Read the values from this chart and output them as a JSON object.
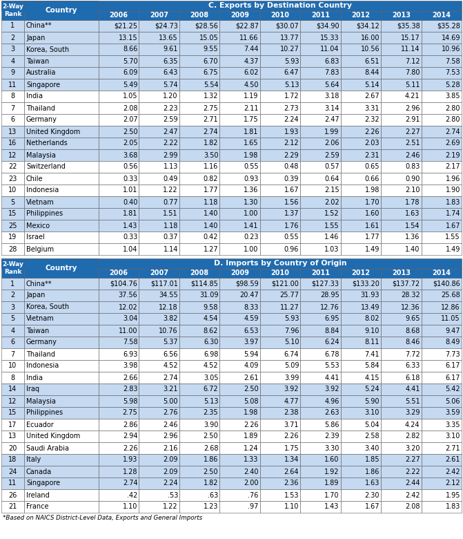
{
  "table_c_title": "C. Exports by Destination Country",
  "table_d_title": "D. Imports by Country of Origin",
  "years": [
    "2006",
    "2007",
    "2008",
    "2009",
    "2010",
    "2011",
    "2012",
    "2013",
    "2014"
  ],
  "table_c_rows": [
    [
      "1",
      "China**",
      "$21.25",
      "$24.73",
      "$28.56",
      "$22.87",
      "$30.07",
      "$34.90",
      "$34.12",
      "$35.38",
      "$35.28"
    ],
    [
      "2",
      "Japan",
      "13.15",
      "13.65",
      "15.05",
      "11.66",
      "13.77",
      "15.33",
      "16.00",
      "15.17",
      "14.69"
    ],
    [
      "3",
      "Korea, South",
      "8.66",
      "9.61",
      "9.55",
      "7.44",
      "10.27",
      "11.04",
      "10.56",
      "11.14",
      "10.96"
    ],
    [
      "4",
      "Taiwan",
      "5.70",
      "6.35",
      "6.70",
      "4.37",
      "5.93",
      "6.83",
      "6.51",
      "7.12",
      "7.58"
    ],
    [
      "9",
      "Australia",
      "6.09",
      "6.43",
      "6.75",
      "6.02",
      "6.47",
      "7.83",
      "8.44",
      "7.80",
      "7.53"
    ],
    [
      "11",
      "Singapore",
      "5.49",
      "5.74",
      "5.54",
      "4.50",
      "5.13",
      "5.64",
      "5.14",
      "5.11",
      "5.28"
    ],
    [
      "8",
      "India",
      "1.05",
      "1.20",
      "1.32",
      "1.19",
      "1.72",
      "3.18",
      "2.67",
      "4.21",
      "3.85"
    ],
    [
      "7",
      "Thailand",
      "2.08",
      "2.23",
      "2.75",
      "2.11",
      "2.73",
      "3.14",
      "3.31",
      "2.96",
      "2.80"
    ],
    [
      "6",
      "Germany",
      "2.07",
      "2.59",
      "2.71",
      "1.75",
      "2.24",
      "2.47",
      "2.32",
      "2.91",
      "2.80"
    ],
    [
      "13",
      "United Kingdom",
      "2.50",
      "2.47",
      "2.74",
      "1.81",
      "1.93",
      "1.99",
      "2.26",
      "2.27",
      "2.74"
    ],
    [
      "16",
      "Netherlands",
      "2.05",
      "2.22",
      "1.82",
      "1.65",
      "2.12",
      "2.06",
      "2.03",
      "2.51",
      "2.69"
    ],
    [
      "12",
      "Malaysia",
      "3.68",
      "2.99",
      "3.50",
      "1.98",
      "2.29",
      "2.59",
      "2.31",
      "2.46",
      "2.19"
    ],
    [
      "22",
      "Switzerland",
      "0.56",
      "1.13",
      "1.16",
      "0.55",
      "0.48",
      "0.57",
      "0.65",
      "0.83",
      "2.17"
    ],
    [
      "23",
      "Chile",
      "0.33",
      "0.49",
      "0.82",
      "0.93",
      "0.39",
      "0.64",
      "0.66",
      "0.90",
      "1.96"
    ],
    [
      "10",
      "Indonesia",
      "1.01",
      "1.22",
      "1.77",
      "1.36",
      "1.67",
      "2.15",
      "1.98",
      "2.10",
      "1.90"
    ],
    [
      "5",
      "Vietnam",
      "0.40",
      "0.77",
      "1.18",
      "1.30",
      "1.56",
      "2.02",
      "1.70",
      "1.78",
      "1.83"
    ],
    [
      "15",
      "Philippines",
      "1.81",
      "1.51",
      "1.40",
      "1.00",
      "1.37",
      "1.52",
      "1.60",
      "1.63",
      "1.74"
    ],
    [
      "25",
      "Mexico",
      "1.43",
      "1.18",
      "1.40",
      "1.41",
      "1.76",
      "1.55",
      "1.61",
      "1.54",
      "1.67"
    ],
    [
      "19",
      "Israel",
      "0.33",
      "0.37",
      "0.42",
      "0.23",
      "0.55",
      "1.46",
      "1.77",
      "1.36",
      "1.55"
    ],
    [
      "28",
      "Belgium",
      "1.04",
      "1.14",
      "1.27",
      "1.00",
      "0.96",
      "1.03",
      "1.49",
      "1.40",
      "1.49"
    ]
  ],
  "table_c_shading": [
    0,
    1,
    2,
    3,
    4,
    5,
    9,
    10,
    11,
    15,
    16,
    17
  ],
  "table_d_rows": [
    [
      "1",
      "China**",
      "$104.76",
      "$117.01",
      "$114.85",
      "$98.59",
      "$121.00",
      "$127.33",
      "$133.20",
      "$137.72",
      "$140.86"
    ],
    [
      "2",
      "Japan",
      "37.56",
      "34.55",
      "31.09",
      "20.47",
      "25.77",
      "28.95",
      "31.93",
      "28.32",
      "25.68"
    ],
    [
      "3",
      "Korea, South",
      "12.02",
      "12.18",
      "9.58",
      "8.33",
      "11.27",
      "12.76",
      "13.49",
      "12.36",
      "12.86"
    ],
    [
      "5",
      "Vietnam",
      "3.04",
      "3.82",
      "4.54",
      "4.59",
      "5.93",
      "6.95",
      "8.02",
      "9.65",
      "11.05"
    ],
    [
      "4",
      "Taiwan",
      "11.00",
      "10.76",
      "8.62",
      "6.53",
      "7.96",
      "8.84",
      "9.10",
      "8.68",
      "9.47"
    ],
    [
      "6",
      "Germany",
      "7.58",
      "5.37",
      "6.30",
      "3.97",
      "5.10",
      "6.24",
      "8.11",
      "8.46",
      "8.49"
    ],
    [
      "7",
      "Thailand",
      "6.93",
      "6.56",
      "6.98",
      "5.94",
      "6.74",
      "6.78",
      "7.41",
      "7.72",
      "7.73"
    ],
    [
      "10",
      "Indonesia",
      "3.98",
      "4.52",
      "4.52",
      "4.09",
      "5.09",
      "5.53",
      "5.84",
      "6.33",
      "6.17"
    ],
    [
      "8",
      "India",
      "2.66",
      "2.74",
      "3.05",
      "2.61",
      "3.99",
      "4.41",
      "4.15",
      "6.18",
      "6.17"
    ],
    [
      "14",
      "Iraq",
      "2.83",
      "3.21",
      "6.72",
      "2.50",
      "3.92",
      "3.92",
      "5.24",
      "4.41",
      "5.42"
    ],
    [
      "12",
      "Malaysia",
      "5.98",
      "5.00",
      "5.13",
      "5.08",
      "4.77",
      "4.96",
      "5.90",
      "5.51",
      "5.06"
    ],
    [
      "15",
      "Philippines",
      "2.75",
      "2.76",
      "2.35",
      "1.98",
      "2.38",
      "2.63",
      "3.10",
      "3.29",
      "3.59"
    ],
    [
      "17",
      "Ecuador",
      "2.86",
      "2.46",
      "3.90",
      "2.26",
      "3.71",
      "5.86",
      "5.04",
      "4.24",
      "3.35"
    ],
    [
      "13",
      "United Kingdom",
      "2.94",
      "2.96",
      "2.50",
      "1.89",
      "2.26",
      "2.39",
      "2.58",
      "2.82",
      "3.10"
    ],
    [
      "20",
      "Saudi Arabia",
      "2.26",
      "2.16",
      "2.68",
      "1.24",
      "1.75",
      "3.30",
      "3.40",
      "3.20",
      "2.71"
    ],
    [
      "18",
      "Italy",
      "1.93",
      "2.09",
      "1.86",
      "1.33",
      "1.34",
      "1.60",
      "1.85",
      "2.27",
      "2.61"
    ],
    [
      "24",
      "Canada",
      "1.28",
      "2.09",
      "2.50",
      "2.40",
      "2.64",
      "1.92",
      "1.86",
      "2.22",
      "2.42"
    ],
    [
      "11",
      "Singapore",
      "2.74",
      "2.24",
      "1.82",
      "2.00",
      "2.36",
      "1.89",
      "1.63",
      "2.44",
      "2.12"
    ],
    [
      "26",
      "Ireland",
      ".42",
      ".53",
      ".63",
      ".76",
      "1.53",
      "1.70",
      "2.30",
      "2.42",
      "1.95"
    ],
    [
      "21",
      "France",
      "1.10",
      "1.22",
      "1.23",
      ".97",
      "1.10",
      "1.43",
      "1.67",
      "2.08",
      "1.83"
    ]
  ],
  "table_d_shading": [
    0,
    1,
    2,
    3,
    4,
    5,
    9,
    10,
    11,
    15,
    16,
    17
  ],
  "header_bg": "#1F6BB0",
  "header_text": "#FFFFFF",
  "shaded_bg": "#C5D9F1",
  "white_bg": "#FFFFFF",
  "border_color": "#5B5B5B",
  "footnote": "*Based on NAICS District-Level Data, Exports and General Imports"
}
